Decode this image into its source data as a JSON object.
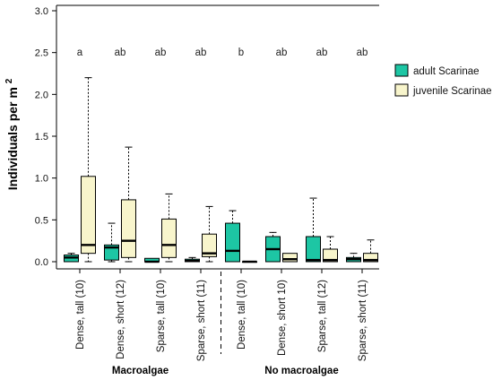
{
  "chart_data": {
    "type": "box",
    "ylabel": "Individuals per m",
    "ylabel_superscript": "2",
    "ylim": [
      0,
      3.05
    ],
    "yticks": [
      "0.0",
      "0.5",
      "1.0",
      "1.5",
      "2.0",
      "2.5",
      "3.0"
    ],
    "ytick_values": [
      0,
      0.5,
      1.0,
      1.5,
      2.0,
      2.5,
      3.0
    ],
    "legend_position": "right",
    "colors": {
      "adult": "#1dc6a4",
      "juvenile": "#f8f5cc"
    },
    "series_names": [
      "adult Scarinae",
      "juvenile Scarinae"
    ],
    "categories": [
      "Dense, tall (10)",
      "Dense, short (12)",
      "Sparse, tall (10)",
      "Sparse, short (11)",
      "Dense, tall (10)",
      "Dense, short 10)",
      "Sparse, tall (12)",
      "Sparse, short (11)"
    ],
    "significance_letters": [
      "a",
      "ab",
      "ab",
      "ab",
      "b",
      "ab",
      "ab",
      "ab"
    ],
    "groups": [
      {
        "label": "Macroalgae",
        "categories": [
          0,
          1,
          2,
          3
        ]
      },
      {
        "label": "No macroalgae",
        "categories": [
          4,
          5,
          6,
          7
        ]
      }
    ],
    "boxes": [
      {
        "category": 0,
        "series": "adult",
        "min": 0.0,
        "q1": 0.0,
        "median": 0.05,
        "q3": 0.08,
        "max": 0.1
      },
      {
        "category": 0,
        "series": "juvenile",
        "min": 0.0,
        "q1": 0.1,
        "median": 0.2,
        "q3": 1.02,
        "max": 2.2
      },
      {
        "category": 1,
        "series": "adult",
        "min": 0.0,
        "q1": 0.02,
        "median": 0.17,
        "q3": 0.2,
        "max": 0.46
      },
      {
        "category": 1,
        "series": "juvenile",
        "min": 0.0,
        "q1": 0.05,
        "median": 0.25,
        "q3": 0.74,
        "max": 1.37
      },
      {
        "category": 2,
        "series": "adult",
        "min": 0.0,
        "q1": 0.0,
        "median": 0.0,
        "q3": 0.04,
        "max": 0.04
      },
      {
        "category": 2,
        "series": "juvenile",
        "min": 0.0,
        "q1": 0.05,
        "median": 0.2,
        "q3": 0.51,
        "max": 0.81
      },
      {
        "category": 3,
        "series": "adult",
        "min": 0.0,
        "q1": 0.0,
        "median": 0.01,
        "q3": 0.03,
        "max": 0.05
      },
      {
        "category": 3,
        "series": "juvenile",
        "min": 0.0,
        "q1": 0.06,
        "median": 0.1,
        "q3": 0.33,
        "max": 0.66
      },
      {
        "category": 4,
        "series": "adult",
        "min": 0.0,
        "q1": 0.0,
        "median": 0.13,
        "q3": 0.46,
        "max": 0.61
      },
      {
        "category": 4,
        "series": "juvenile",
        "min": 0.0,
        "q1": 0.0,
        "median": 0.0,
        "q3": 0.0,
        "max": 0.0
      },
      {
        "category": 5,
        "series": "adult",
        "min": 0.0,
        "q1": 0.0,
        "median": 0.15,
        "q3": 0.3,
        "max": 0.35
      },
      {
        "category": 5,
        "series": "juvenile",
        "min": 0.0,
        "q1": 0.0,
        "median": 0.03,
        "q3": 0.1,
        "max": 0.1
      },
      {
        "category": 6,
        "series": "adult",
        "min": 0.0,
        "q1": 0.0,
        "median": 0.02,
        "q3": 0.3,
        "max": 0.76
      },
      {
        "category": 6,
        "series": "juvenile",
        "min": 0.0,
        "q1": 0.0,
        "median": 0.02,
        "q3": 0.15,
        "max": 0.3
      },
      {
        "category": 7,
        "series": "adult",
        "min": 0.0,
        "q1": 0.0,
        "median": 0.03,
        "q3": 0.05,
        "max": 0.1
      },
      {
        "category": 7,
        "series": "juvenile",
        "min": 0.0,
        "q1": 0.0,
        "median": 0.02,
        "q3": 0.1,
        "max": 0.26
      }
    ]
  }
}
